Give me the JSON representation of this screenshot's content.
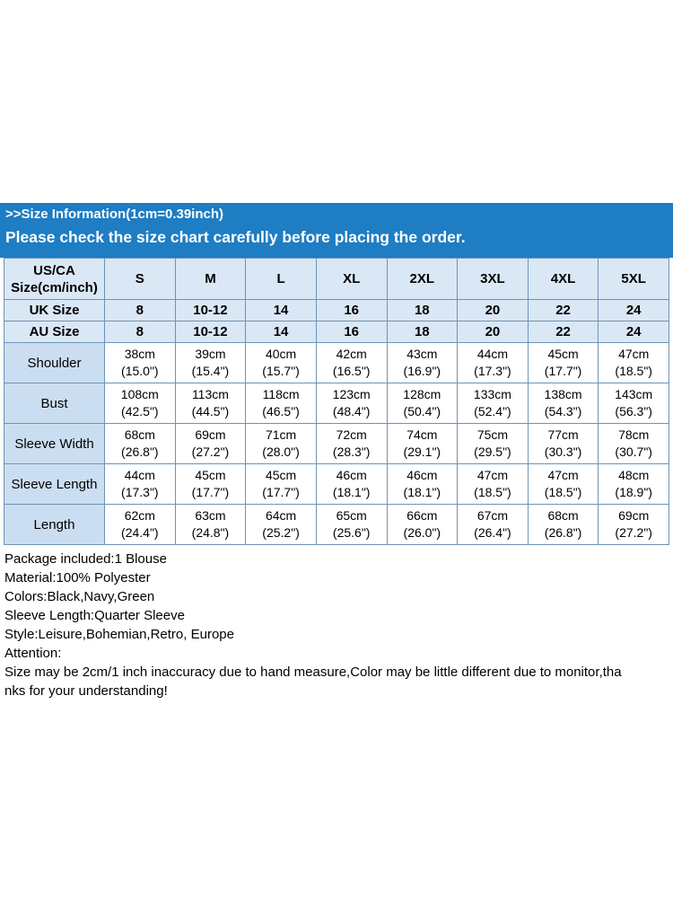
{
  "banner": {
    "line1": ">>Size Information(1cm=0.39inch)",
    "line2": "Please check the size chart carefully before placing the order."
  },
  "size_chart": {
    "corner_label": "US/CA Size(cm/inch)",
    "columns": [
      "S",
      "M",
      "L",
      "XL",
      "2XL",
      "3XL",
      "4XL",
      "5XL"
    ],
    "region_rows": [
      {
        "label": "UK Size",
        "values": [
          "8",
          "10-12",
          "14",
          "16",
          "18",
          "20",
          "22",
          "24"
        ]
      },
      {
        "label": "AU Size",
        "values": [
          "8",
          "10-12",
          "14",
          "16",
          "18",
          "20",
          "22",
          "24"
        ]
      }
    ],
    "measurement_rows": [
      {
        "label": "Shoulder",
        "values": [
          {
            "cm": "38cm",
            "in": "(15.0\")"
          },
          {
            "cm": "39cm",
            "in": "(15.4\")"
          },
          {
            "cm": "40cm",
            "in": "(15.7\")"
          },
          {
            "cm": "42cm",
            "in": "(16.5\")"
          },
          {
            "cm": "43cm",
            "in": "(16.9\")"
          },
          {
            "cm": "44cm",
            "in": "(17.3\")"
          },
          {
            "cm": "45cm",
            "in": "(17.7\")"
          },
          {
            "cm": "47cm",
            "in": "(18.5\")"
          }
        ]
      },
      {
        "label": "Bust",
        "values": [
          {
            "cm": "108cm",
            "in": "(42.5\")"
          },
          {
            "cm": "113cm",
            "in": "(44.5\")"
          },
          {
            "cm": "118cm",
            "in": "(46.5\")"
          },
          {
            "cm": "123cm",
            "in": "(48.4\")"
          },
          {
            "cm": "128cm",
            "in": "(50.4\")"
          },
          {
            "cm": "133cm",
            "in": "(52.4\")"
          },
          {
            "cm": "138cm",
            "in": "(54.3\")"
          },
          {
            "cm": "143cm",
            "in": "(56.3\")"
          }
        ]
      },
      {
        "label": "Sleeve Width",
        "values": [
          {
            "cm": "68cm",
            "in": "(26.8\")"
          },
          {
            "cm": "69cm",
            "in": "(27.2\")"
          },
          {
            "cm": "71cm",
            "in": "(28.0\")"
          },
          {
            "cm": "72cm",
            "in": "(28.3\")"
          },
          {
            "cm": "74cm",
            "in": "(29.1\")"
          },
          {
            "cm": "75cm",
            "in": "(29.5\")"
          },
          {
            "cm": "77cm",
            "in": "(30.3\")"
          },
          {
            "cm": "78cm",
            "in": "(30.7\")"
          }
        ]
      },
      {
        "label": "Sleeve Length",
        "values": [
          {
            "cm": "44cm",
            "in": "(17.3\")"
          },
          {
            "cm": "45cm",
            "in": "(17.7\")"
          },
          {
            "cm": "45cm",
            "in": "(17.7\")"
          },
          {
            "cm": "46cm",
            "in": "(18.1\")"
          },
          {
            "cm": "46cm",
            "in": "(18.1\")"
          },
          {
            "cm": "47cm",
            "in": "(18.5\")"
          },
          {
            "cm": "47cm",
            "in": "(18.5\")"
          },
          {
            "cm": "48cm",
            "in": "(18.9\")"
          }
        ]
      },
      {
        "label": "Length",
        "values": [
          {
            "cm": "62cm",
            "in": "(24.4\")"
          },
          {
            "cm": "63cm",
            "in": "(24.8\")"
          },
          {
            "cm": "64cm",
            "in": "(25.2\")"
          },
          {
            "cm": "65cm",
            "in": "(25.6\")"
          },
          {
            "cm": "66cm",
            "in": "(26.0\")"
          },
          {
            "cm": "67cm",
            "in": "(26.4\")"
          },
          {
            "cm": "68cm",
            "in": "(26.8\")"
          },
          {
            "cm": "69cm",
            "in": "(27.2\")"
          }
        ]
      }
    ]
  },
  "details": {
    "lines": [
      "Package included:1 Blouse",
      "Material:100% Polyester",
      "Colors:Black,Navy,Green",
      "Sleeve Length:Quarter Sleeve",
      "Style:Leisure,Bohemian,Retro, Europe",
      "Attention:",
      "Size may be 2cm/1 inch inaccuracy due to hand measure,Color may be little different due to monitor,tha",
      "nks for your understanding!"
    ]
  },
  "colors": {
    "banner_bg": "#1E7DC3",
    "header_cell_bg": "#DAE7F5",
    "label_cell_bg": "#CBDEF1",
    "table_border": "#6E93B5"
  }
}
